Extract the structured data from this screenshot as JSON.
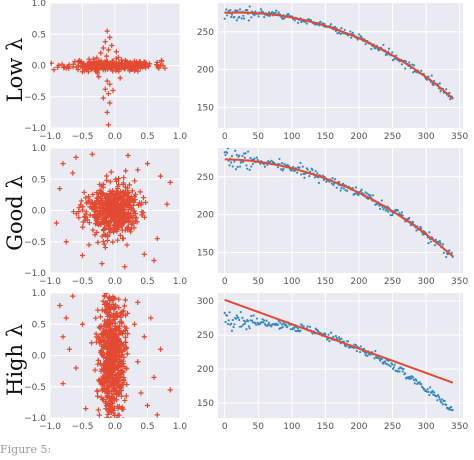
{
  "colors": {
    "panel_bg": "#eaeaf2",
    "grid": "#ffffff",
    "scatter": "#e24a33",
    "fit_line": "#e24a33",
    "data_points": "#348abd"
  },
  "caption": "Figure 5:",
  "chart_data": [
    {
      "type": "scatter",
      "row_label": "Low λ",
      "marker": "+",
      "xlim": [
        -1.0,
        1.0
      ],
      "ylim": [
        -1.0,
        1.0
      ],
      "xticks": [
        -1.0,
        -0.5,
        0.0,
        0.5,
        1.0
      ],
      "yticks": [
        -1.0,
        -0.5,
        0.0,
        0.5,
        1.0
      ],
      "x_tick_labels": [
        "−1.0",
        "−0.5",
        "0.0",
        "0.5",
        "1.0"
      ],
      "y_tick_labels": [
        "−1.0",
        "−0.5",
        "0.0",
        "0.5",
        "1.0"
      ],
      "grid": true,
      "distribution": {
        "kind": "gaussian",
        "n": 300,
        "sx": 0.33,
        "sy": 0.04,
        "seed": 11
      },
      "points": [
        [
          -0.12,
          0.55
        ],
        [
          -0.08,
          0.45
        ],
        [
          -0.15,
          0.38
        ],
        [
          -0.05,
          0.32
        ],
        [
          -0.18,
          0.28
        ],
        [
          -0.1,
          0.25
        ],
        [
          -0.22,
          0.2
        ],
        [
          0.02,
          0.22
        ],
        [
          -0.13,
          0.15
        ],
        [
          -0.28,
          0.12
        ],
        [
          0.05,
          0.13
        ],
        [
          -0.55,
          0.08
        ],
        [
          -0.4,
          0.1
        ],
        [
          0.3,
          0.07
        ],
        [
          0.45,
          0.06
        ],
        [
          -0.75,
          -0.04
        ],
        [
          0.65,
          0.05
        ],
        [
          -0.12,
          -0.25
        ],
        [
          -0.08,
          -0.3
        ],
        [
          -0.15,
          -0.38
        ],
        [
          -0.1,
          -0.45
        ],
        [
          -0.03,
          -0.4
        ],
        [
          -0.18,
          -0.52
        ],
        [
          -0.08,
          -0.6
        ],
        [
          -0.12,
          -0.75
        ],
        [
          -0.1,
          -0.95
        ],
        [
          -0.25,
          -0.18
        ],
        [
          0.08,
          -0.2
        ],
        [
          -0.5,
          -0.1
        ],
        [
          0.3,
          -0.08
        ]
      ]
    },
    {
      "type": "line",
      "row_label": "Low λ",
      "xlim": [
        -10,
        355
      ],
      "ylim": [
        123,
        288
      ],
      "xticks": [
        0,
        50,
        100,
        150,
        200,
        250,
        300,
        350
      ],
      "yticks": [
        150,
        200,
        250
      ],
      "grid": true,
      "series": [
        {
          "style": "points",
          "noise": 3,
          "seed": 3,
          "x": [
            0,
            20,
            40,
            60,
            80,
            100,
            120,
            140,
            160,
            180,
            200,
            220,
            240,
            260,
            280,
            300,
            320,
            340
          ],
          "y": [
            275,
            275.4,
            275,
            273.8,
            271.8,
            268.8,
            265,
            260.5,
            255,
            248.5,
            241.5,
            233,
            224,
            213.5,
            202.5,
            190.5,
            177,
            162
          ]
        },
        {
          "style": "line",
          "x": [
            0,
            20,
            40,
            60,
            80,
            100,
            120,
            140,
            160,
            180,
            200,
            220,
            240,
            260,
            280,
            300,
            320,
            340
          ],
          "y": [
            275,
            275.4,
            275,
            273.8,
            271.8,
            268.8,
            265,
            260.5,
            255,
            248.5,
            241.5,
            233,
            224,
            213.5,
            202.5,
            190.5,
            177,
            162
          ]
        }
      ]
    },
    {
      "type": "scatter",
      "row_label": "Good λ",
      "marker": "+",
      "xlim": [
        -1.0,
        1.0
      ],
      "ylim": [
        -1.0,
        1.0
      ],
      "xticks": [
        -1.0,
        -0.5,
        0.0,
        0.5,
        1.0
      ],
      "yticks": [
        -1.0,
        -0.5,
        0.0,
        0.5,
        1.0
      ],
      "x_tick_labels": [
        "−1.0",
        "−0.5",
        "0.0",
        "0.5",
        "1.0"
      ],
      "y_tick_labels": [
        "−1.0",
        "−0.5",
        "0.0",
        "0.5",
        "1.0"
      ],
      "grid": true,
      "distribution": {
        "kind": "gaussian",
        "n": 550,
        "sx": 0.2,
        "sy": 0.2,
        "seed": 23
      },
      "points": [
        [
          -0.8,
          0.75
        ],
        [
          -0.6,
          0.85
        ],
        [
          -0.35,
          0.9
        ],
        [
          0.2,
          0.88
        ],
        [
          0.5,
          0.75
        ],
        [
          0.7,
          0.55
        ],
        [
          -0.85,
          0.35
        ],
        [
          -0.9,
          -0.2
        ],
        [
          -0.75,
          -0.5
        ],
        [
          -0.5,
          -0.72
        ],
        [
          -0.2,
          -0.85
        ],
        [
          0.15,
          -0.9
        ],
        [
          0.45,
          -0.7
        ],
        [
          0.65,
          -0.45
        ],
        [
          0.8,
          0.1
        ],
        [
          0.6,
          -0.8
        ],
        [
          -0.65,
          0.6
        ],
        [
          0.35,
          0.65
        ],
        [
          0.85,
          0.45
        ],
        [
          -0.4,
          -0.55
        ]
      ]
    },
    {
      "type": "line",
      "row_label": "Good λ",
      "xlim": [
        -10,
        355
      ],
      "ylim": [
        123,
        288
      ],
      "xticks": [
        0,
        50,
        100,
        150,
        200,
        250,
        300,
        350
      ],
      "yticks": [
        150,
        200,
        250
      ],
      "grid": true,
      "series": [
        {
          "style": "points",
          "noise": 4,
          "seed": 7,
          "x": [
            0,
            20,
            40,
            60,
            80,
            100,
            120,
            140,
            160,
            180,
            200,
            220,
            240,
            260,
            280,
            300,
            320,
            340
          ],
          "y": [
            273,
            272.5,
            271,
            268.5,
            265.3,
            261.3,
            256.5,
            251,
            244.5,
            237.2,
            229,
            220,
            210,
            199,
            187,
            174,
            160,
            145
          ]
        },
        {
          "style": "line",
          "x": [
            0,
            20,
            40,
            60,
            80,
            100,
            120,
            140,
            160,
            180,
            200,
            220,
            240,
            260,
            280,
            300,
            320,
            340
          ],
          "y": [
            273,
            272.5,
            271,
            268.5,
            265.3,
            261.3,
            256.5,
            251,
            244.5,
            237.2,
            229,
            220,
            210,
            199,
            187,
            174,
            160,
            145
          ]
        }
      ]
    },
    {
      "type": "scatter",
      "row_label": "High λ",
      "marker": "+",
      "xlim": [
        -1.0,
        1.0
      ],
      "ylim": [
        -1.0,
        1.0
      ],
      "xticks": [
        -1.0,
        -0.5,
        0.0,
        0.5,
        1.0
      ],
      "yticks": [
        -1.0,
        -0.5,
        0.0,
        0.5,
        1.0
      ],
      "x_tick_labels": [
        "−1.0",
        "−0.5",
        "0.0",
        "0.5",
        "1.0"
      ],
      "y_tick_labels": [
        "−1.0",
        "−0.5",
        "0.0",
        "0.5",
        "1.0"
      ],
      "grid": true,
      "distribution": {
        "kind": "gaussian",
        "n": 650,
        "sx": 0.1,
        "sy": 0.5,
        "seed": 37
      },
      "points": [
        [
          -0.85,
          0.8
        ],
        [
          -0.75,
          0.6
        ],
        [
          -0.65,
          0.95
        ],
        [
          -0.8,
          0.3
        ],
        [
          -0.7,
          0.1
        ],
        [
          -0.6,
          -0.2
        ],
        [
          -0.8,
          -0.45
        ],
        [
          0.35,
          0.85
        ],
        [
          0.55,
          0.6
        ],
        [
          0.45,
          0.3
        ],
        [
          0.7,
          0.1
        ],
        [
          0.35,
          -0.1
        ],
        [
          0.6,
          -0.35
        ],
        [
          0.85,
          -0.55
        ],
        [
          0.5,
          -0.8
        ],
        [
          0.65,
          -0.95
        ],
        [
          -0.45,
          -0.85
        ],
        [
          -0.5,
          0.5
        ],
        [
          0.3,
          0.5
        ],
        [
          0.4,
          -0.6
        ]
      ]
    },
    {
      "type": "line",
      "row_label": "High λ",
      "xlim": [
        -10,
        355
      ],
      "ylim": [
        128,
        312
      ],
      "xticks": [
        0,
        50,
        100,
        150,
        200,
        250,
        300,
        350
      ],
      "yticks": [
        150,
        200,
        250,
        300
      ],
      "grid": true,
      "series": [
        {
          "style": "points",
          "noise": 4,
          "seed": 19,
          "x": [
            0,
            20,
            40,
            60,
            80,
            100,
            120,
            140,
            160,
            180,
            200,
            220,
            240,
            260,
            280,
            300,
            320,
            340
          ],
          "y": [
            272,
            271.6,
            270.5,
            268.7,
            266,
            262.5,
            258,
            252.5,
            246,
            238.5,
            230,
            220.5,
            210,
            198,
            185,
            171,
            155,
            140
          ]
        },
        {
          "style": "line",
          "x": [
            0,
            340
          ],
          "y": [
            302,
            180
          ]
        }
      ]
    }
  ]
}
